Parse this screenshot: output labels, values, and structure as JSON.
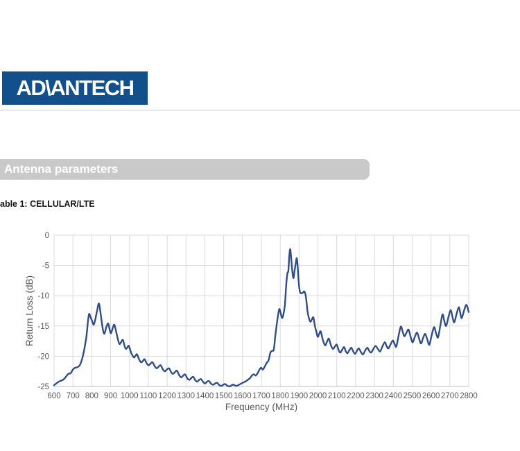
{
  "page": {
    "logo": {
      "wordmark": "AD\\ANTECH",
      "bg_color": "#12508c",
      "text_color": "#ffffff"
    },
    "divider_color": "#e7e7e7",
    "section_banner": {
      "label": "Antenna parameters",
      "bg_color": "#c9c9c9",
      "text_color": "#ffffff"
    },
    "table_caption": "able 1: CELLULAR/LTE"
  },
  "chart_data": {
    "type": "line",
    "title": "",
    "xlabel": "Frequency (MHz)",
    "ylabel": "Return Loss (dB)",
    "xlim": [
      600,
      2800
    ],
    "ylim": [
      -25,
      0
    ],
    "x_ticks": [
      600,
      700,
      800,
      900,
      1000,
      1100,
      1200,
      1300,
      1400,
      1500,
      1600,
      1700,
      1800,
      1900,
      2000,
      2100,
      2200,
      2300,
      2400,
      2500,
      2600,
      2700,
      2800
    ],
    "y_ticks": [
      0,
      -5,
      -10,
      -15,
      -20,
      -25
    ],
    "grid": true,
    "legend_position": "none",
    "line_color": "#2e4d8c",
    "grid_color": "#d9d9d9",
    "axis_line_color": "#bfbfbf",
    "tick_label_color": "#595959",
    "points": [
      [
        600,
        -24.8
      ],
      [
        612,
        -24.5
      ],
      [
        625,
        -24.2
      ],
      [
        640,
        -24.0
      ],
      [
        652,
        -23.8
      ],
      [
        665,
        -23.3
      ],
      [
        676,
        -22.9
      ],
      [
        688,
        -22.8
      ],
      [
        700,
        -22.2
      ],
      [
        712,
        -21.9
      ],
      [
        725,
        -21.8
      ],
      [
        738,
        -21.4
      ],
      [
        750,
        -20.3
      ],
      [
        762,
        -18.6
      ],
      [
        772,
        -16.6
      ],
      [
        780,
        -14.2
      ],
      [
        786,
        -13.0
      ],
      [
        793,
        -13.5
      ],
      [
        802,
        -14.2
      ],
      [
        810,
        -14.8
      ],
      [
        818,
        -14.0
      ],
      [
        828,
        -12.5
      ],
      [
        838,
        -11.3
      ],
      [
        848,
        -13.2
      ],
      [
        858,
        -15.4
      ],
      [
        867,
        -16.3
      ],
      [
        877,
        -15.2
      ],
      [
        887,
        -14.6
      ],
      [
        895,
        -15.6
      ],
      [
        902,
        -16.2
      ],
      [
        911,
        -15.4
      ],
      [
        920,
        -14.8
      ],
      [
        932,
        -16.3
      ],
      [
        941,
        -17.5
      ],
      [
        948,
        -18.0
      ],
      [
        957,
        -17.6
      ],
      [
        965,
        -17.3
      ],
      [
        974,
        -18.3
      ],
      [
        981,
        -18.8
      ],
      [
        990,
        -18.5
      ],
      [
        997,
        -18.3
      ],
      [
        1010,
        -19.5
      ],
      [
        1024,
        -20.2
      ],
      [
        1032,
        -19.9
      ],
      [
        1040,
        -19.7
      ],
      [
        1052,
        -20.6
      ],
      [
        1062,
        -21.0
      ],
      [
        1071,
        -20.8
      ],
      [
        1080,
        -20.5
      ],
      [
        1092,
        -21.2
      ],
      [
        1102,
        -21.5
      ],
      [
        1112,
        -21.2
      ],
      [
        1122,
        -21.0
      ],
      [
        1135,
        -21.7
      ],
      [
        1145,
        -22.0
      ],
      [
        1155,
        -21.7
      ],
      [
        1165,
        -21.5
      ],
      [
        1178,
        -22.2
      ],
      [
        1188,
        -22.5
      ],
      [
        1198,
        -22.2
      ],
      [
        1210,
        -22.0
      ],
      [
        1222,
        -22.7
      ],
      [
        1232,
        -22.9
      ],
      [
        1242,
        -22.6
      ],
      [
        1252,
        -22.4
      ],
      [
        1265,
        -23.2
      ],
      [
        1275,
        -23.5
      ],
      [
        1285,
        -23.2
      ],
      [
        1295,
        -23.0
      ],
      [
        1308,
        -23.7
      ],
      [
        1318,
        -23.9
      ],
      [
        1328,
        -23.6
      ],
      [
        1338,
        -23.4
      ],
      [
        1350,
        -24.0
      ],
      [
        1360,
        -24.2
      ],
      [
        1370,
        -23.9
      ],
      [
        1380,
        -23.8
      ],
      [
        1392,
        -24.3
      ],
      [
        1402,
        -24.5
      ],
      [
        1412,
        -24.2
      ],
      [
        1422,
        -24.1
      ],
      [
        1435,
        -24.6
      ],
      [
        1445,
        -24.7
      ],
      [
        1455,
        -24.5
      ],
      [
        1465,
        -24.4
      ],
      [
        1478,
        -24.8
      ],
      [
        1488,
        -24.9
      ],
      [
        1498,
        -24.7
      ],
      [
        1508,
        -24.6
      ],
      [
        1520,
        -24.9
      ],
      [
        1532,
        -25.0
      ],
      [
        1542,
        -24.8
      ],
      [
        1552,
        -24.7
      ],
      [
        1564,
        -24.9
      ],
      [
        1576,
        -24.8
      ],
      [
        1588,
        -24.6
      ],
      [
        1600,
        -24.4
      ],
      [
        1614,
        -24.2
      ],
      [
        1628,
        -23.9
      ],
      [
        1640,
        -23.6
      ],
      [
        1652,
        -23.1
      ],
      [
        1661,
        -23.0
      ],
      [
        1670,
        -23.2
      ],
      [
        1680,
        -22.8
      ],
      [
        1690,
        -22.2
      ],
      [
        1699,
        -21.9
      ],
      [
        1708,
        -22.2
      ],
      [
        1718,
        -21.7
      ],
      [
        1728,
        -21.1
      ],
      [
        1738,
        -20.7
      ],
      [
        1748,
        -19.4
      ],
      [
        1758,
        -19.1
      ],
      [
        1766,
        -18.9
      ],
      [
        1773,
        -16.9
      ],
      [
        1781,
        -14.9
      ],
      [
        1788,
        -13.3
      ],
      [
        1795,
        -12.2
      ],
      [
        1802,
        -12.8
      ],
      [
        1810,
        -13.7
      ],
      [
        1818,
        -12.9
      ],
      [
        1825,
        -11.4
      ],
      [
        1832,
        -8.1
      ],
      [
        1838,
        -6.3
      ],
      [
        1843,
        -5.9
      ],
      [
        1848,
        -3.5
      ],
      [
        1853,
        -2.3
      ],
      [
        1858,
        -3.7
      ],
      [
        1864,
        -5.9
      ],
      [
        1870,
        -7.1
      ],
      [
        1876,
        -5.9
      ],
      [
        1882,
        -4.7
      ],
      [
        1888,
        -3.8
      ],
      [
        1893,
        -5.4
      ],
      [
        1898,
        -7.7
      ],
      [
        1904,
        -9.3
      ],
      [
        1912,
        -9.6
      ],
      [
        1920,
        -9.5
      ],
      [
        1928,
        -9.3
      ],
      [
        1936,
        -10.1
      ],
      [
        1944,
        -12.4
      ],
      [
        1952,
        -13.7
      ],
      [
        1960,
        -14.3
      ],
      [
        1968,
        -13.9
      ],
      [
        1976,
        -13.6
      ],
      [
        1984,
        -15.0
      ],
      [
        1992,
        -16.0
      ],
      [
        1999,
        -16.8
      ],
      [
        2007,
        -16.3
      ],
      [
        2015,
        -15.9
      ],
      [
        2026,
        -17.3
      ],
      [
        2038,
        -18.2
      ],
      [
        2048,
        -17.6
      ],
      [
        2058,
        -17.1
      ],
      [
        2069,
        -18.2
      ],
      [
        2080,
        -18.8
      ],
      [
        2090,
        -18.4
      ],
      [
        2100,
        -18.1
      ],
      [
        2110,
        -19.0
      ],
      [
        2119,
        -19.4
      ],
      [
        2129,
        -18.9
      ],
      [
        2139,
        -18.5
      ],
      [
        2148,
        -19.2
      ],
      [
        2157,
        -19.5
      ],
      [
        2167,
        -19.0
      ],
      [
        2177,
        -18.6
      ],
      [
        2187,
        -19.2
      ],
      [
        2197,
        -19.6
      ],
      [
        2207,
        -19.1
      ],
      [
        2217,
        -18.7
      ],
      [
        2228,
        -19.3
      ],
      [
        2239,
        -19.7
      ],
      [
        2250,
        -19.1
      ],
      [
        2262,
        -18.6
      ],
      [
        2272,
        -19.1
      ],
      [
        2282,
        -19.4
      ],
      [
        2294,
        -18.8
      ],
      [
        2306,
        -18.3
      ],
      [
        2318,
        -18.8
      ],
      [
        2330,
        -19.2
      ],
      [
        2342,
        -18.4
      ],
      [
        2355,
        -17.7
      ],
      [
        2364,
        -18.3
      ],
      [
        2374,
        -18.7
      ],
      [
        2386,
        -18.0
      ],
      [
        2398,
        -17.4
      ],
      [
        2407,
        -18.0
      ],
      [
        2416,
        -18.4
      ],
      [
        2428,
        -16.6
      ],
      [
        2440,
        -15.1
      ],
      [
        2450,
        -16.0
      ],
      [
        2459,
        -16.7
      ],
      [
        2470,
        -16.1
      ],
      [
        2481,
        -15.6
      ],
      [
        2491,
        -16.7
      ],
      [
        2502,
        -17.7
      ],
      [
        2514,
        -16.8
      ],
      [
        2526,
        -16.1
      ],
      [
        2536,
        -17.0
      ],
      [
        2547,
        -17.9
      ],
      [
        2558,
        -17.0
      ],
      [
        2569,
        -16.3
      ],
      [
        2580,
        -17.2
      ],
      [
        2591,
        -18.1
      ],
      [
        2603,
        -16.6
      ],
      [
        2616,
        -15.2
      ],
      [
        2626,
        -16.1
      ],
      [
        2637,
        -16.9
      ],
      [
        2649,
        -15.0
      ],
      [
        2661,
        -13.1
      ],
      [
        2670,
        -14.1
      ],
      [
        2680,
        -15.0
      ],
      [
        2692,
        -13.6
      ],
      [
        2704,
        -12.4
      ],
      [
        2713,
        -13.4
      ],
      [
        2723,
        -14.4
      ],
      [
        2735,
        -13.1
      ],
      [
        2747,
        -11.9
      ],
      [
        2755,
        -12.8
      ],
      [
        2763,
        -13.7
      ],
      [
        2775,
        -12.5
      ],
      [
        2788,
        -11.5
      ],
      [
        2800,
        -12.7
      ]
    ]
  }
}
